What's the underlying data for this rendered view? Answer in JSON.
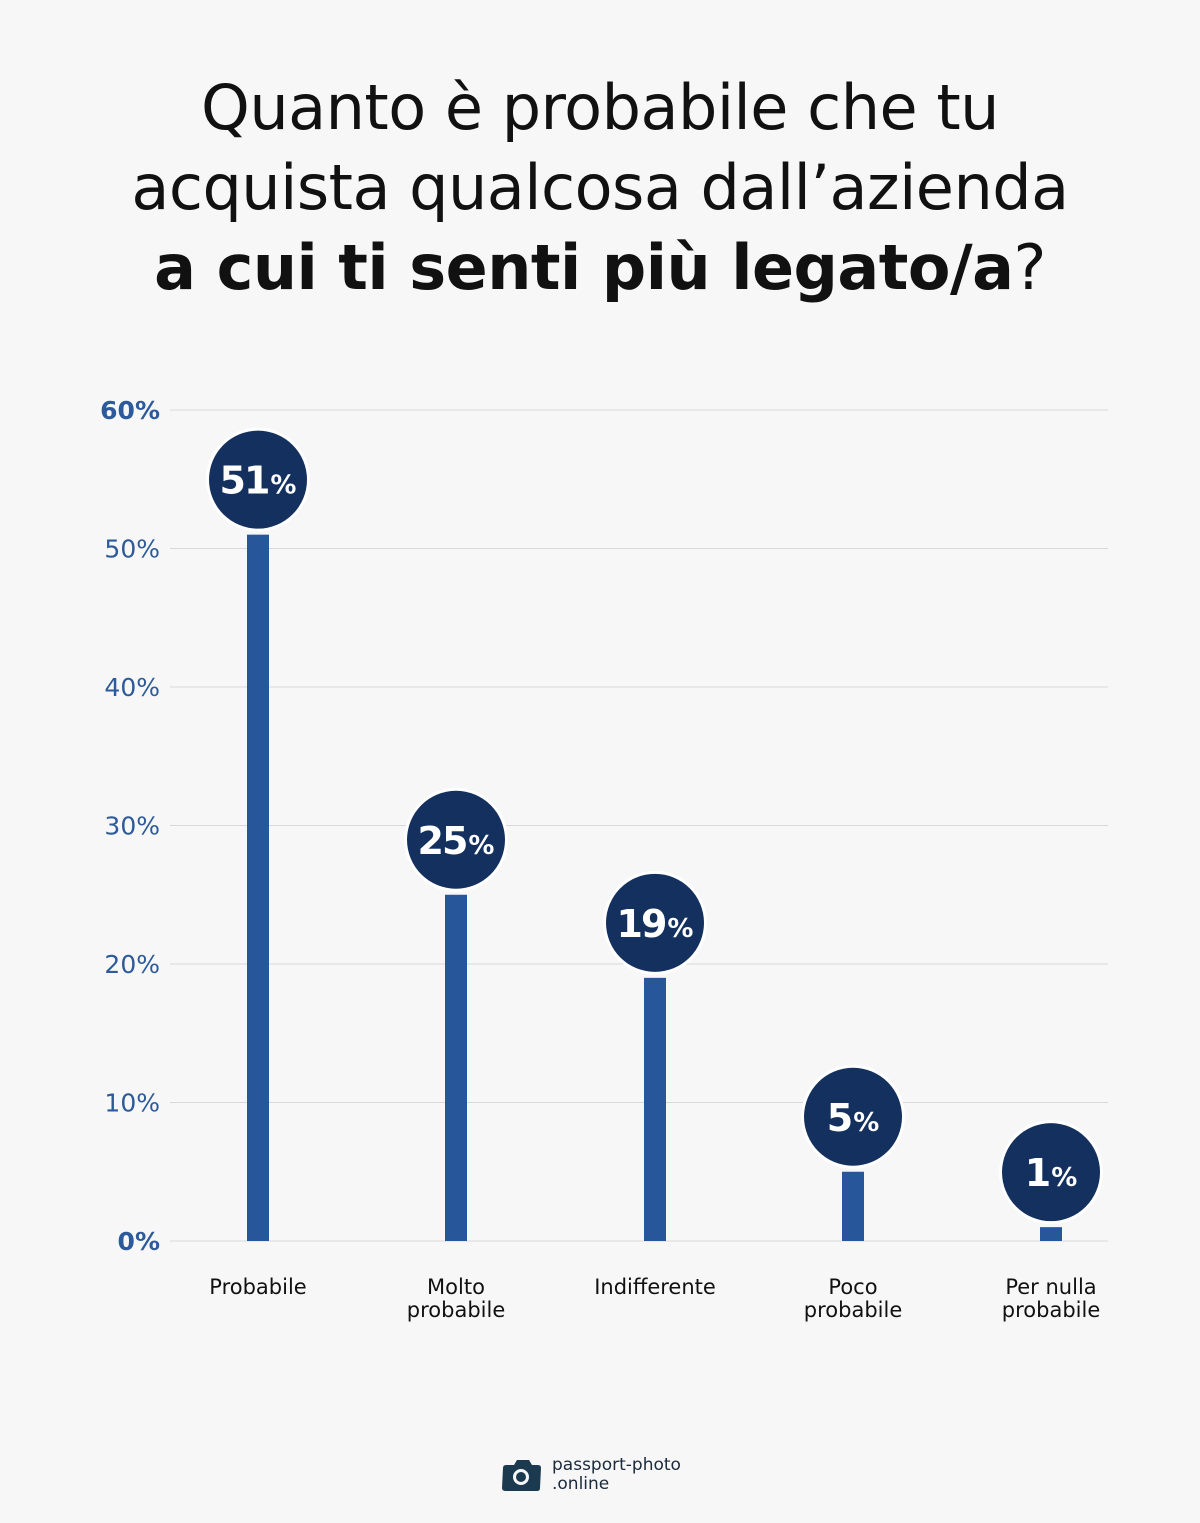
{
  "title": {
    "line1": "Quanto è probabile che tu",
    "line2": "acquista qualcosa dall’azienda",
    "line3_bold": "a cui ti senti più legato/a",
    "line3_end": "?"
  },
  "chart_data": {
    "type": "bar",
    "categories": [
      [
        "Probabile"
      ],
      [
        "Molto",
        "probabile"
      ],
      [
        "Indifferente"
      ],
      [
        "Poco",
        "probabile"
      ],
      [
        "Per nulla",
        "probabile"
      ]
    ],
    "values": [
      51,
      25,
      19,
      5,
      1
    ],
    "value_labels": [
      "51",
      "25",
      "19",
      "5",
      "1"
    ],
    "value_suffix": "%",
    "ylim": [
      0,
      60
    ],
    "yticks": [
      "0%",
      "10%",
      "20%",
      "30%",
      "40%",
      "50%",
      "60%"
    ],
    "grid": true,
    "title": "Quanto è probabile che tu acquista qualcosa dall’azienda a cui ti senti più legato/a?",
    "xlabel": "",
    "ylabel": ""
  },
  "colors": {
    "bar": "#27579a",
    "bubble": "#14305e",
    "tick_label": "#2c5a9a",
    "grid": "#d8d8d8",
    "title": "#111111"
  },
  "logo": {
    "line1": "passport-photo",
    "line2": ".online",
    "icon": "camera-icon"
  }
}
